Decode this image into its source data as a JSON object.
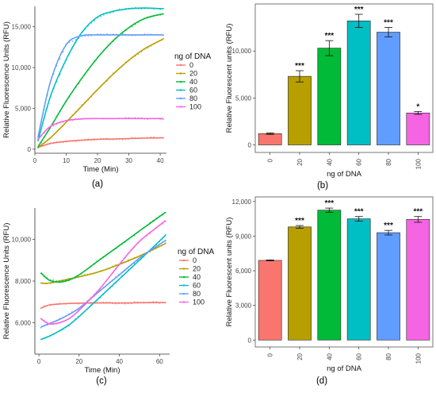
{
  "palette": [
    "#F8766D",
    "#B79F00",
    "#00BA38",
    "#00BFC4",
    "#619CFF",
    "#F564E3"
  ],
  "chart_data": [
    {
      "id": "a",
      "type": "line",
      "panel_label": "(a)",
      "xlabel": "Time (Min)",
      "ylabel": "Relative Fluorescence Units (RFU)",
      "xlim": [
        0,
        42
      ],
      "ylim": [
        -500,
        17500
      ],
      "xticks": [
        0,
        10,
        20,
        30,
        40
      ],
      "xtick_labels": [
        "0",
        "10",
        "20",
        "30",
        "40"
      ],
      "yticks": [
        0,
        5000,
        10000,
        15000
      ],
      "ytick_labels": [
        "0",
        "5,000",
        "10,000",
        "15,000"
      ],
      "legend_title": "ng of DNA",
      "legend_position": "right",
      "x": [
        1,
        5,
        10,
        15,
        20,
        25,
        30,
        35,
        41
      ],
      "series": [
        {
          "name": "0",
          "values": [
            200,
            700,
            950,
            1100,
            1200,
            1250,
            1300,
            1350,
            1400
          ]
        },
        {
          "name": "20",
          "values": [
            200,
            1400,
            3300,
            5300,
            7300,
            9200,
            10900,
            12300,
            13500
          ]
        },
        {
          "name": "40",
          "values": [
            300,
            2700,
            5900,
            8700,
            11200,
            13300,
            14900,
            16000,
            16600
          ]
        },
        {
          "name": "60",
          "values": [
            1000,
            6500,
            11000,
            14300,
            16200,
            16900,
            17200,
            17300,
            17200
          ]
        },
        {
          "name": "80",
          "values": [
            1500,
            8300,
            12800,
            13900,
            14000,
            14000,
            14000,
            14000,
            14000
          ]
        },
        {
          "name": "100",
          "values": [
            1200,
            2800,
            3500,
            3700,
            3750,
            3750,
            3750,
            3750,
            3750
          ]
        }
      ]
    },
    {
      "id": "b",
      "type": "bar",
      "panel_label": "(b)",
      "xlabel": "ng of DNA",
      "ylabel": "Relative Fluorescent units (RFU)",
      "ylim": [
        -800,
        15000
      ],
      "yticks": [
        0,
        5000,
        10000
      ],
      "ytick_labels": [
        "0",
        "5,000",
        "10,000"
      ],
      "categories": [
        "0",
        "20",
        "40",
        "60",
        "80",
        "100"
      ],
      "values": [
        1200,
        7300,
        10300,
        13200,
        12000,
        3400
      ],
      "errors": [
        80,
        600,
        800,
        700,
        500,
        150
      ],
      "annotations": [
        "",
        "***",
        "***",
        "***",
        "***",
        "*"
      ]
    },
    {
      "id": "c",
      "type": "line",
      "panel_label": "(c)",
      "xlabel": "Time (Min)",
      "ylabel": "Relative Fluorescence Units (RFU)",
      "xlim": [
        -2,
        65
      ],
      "ylim": [
        4500,
        11500
      ],
      "xticks": [
        0,
        20,
        40,
        60
      ],
      "xtick_labels": [
        "0",
        "20",
        "40",
        "60"
      ],
      "yticks": [
        6000,
        8000,
        10000
      ],
      "ytick_labels": [
        "6,000",
        "8,000",
        "10,000"
      ],
      "legend_title": "ng of DNA",
      "legend_position": "right",
      "x": [
        1,
        5,
        10,
        15,
        20,
        30,
        40,
        50,
        63
      ],
      "series": [
        {
          "name": "0",
          "values": [
            6700,
            6850,
            6900,
            6930,
            6940,
            6950,
            6950,
            6960,
            6970
          ]
        },
        {
          "name": "20",
          "values": [
            7900,
            7900,
            8000,
            8100,
            8200,
            8450,
            8800,
            9200,
            9800
          ]
        },
        {
          "name": "40",
          "values": [
            8400,
            8050,
            7950,
            8050,
            8300,
            9000,
            9700,
            10400,
            11300
          ]
        },
        {
          "name": "60",
          "values": [
            5200,
            5350,
            5600,
            5900,
            6300,
            7200,
            8100,
            9000,
            10200
          ]
        },
        {
          "name": "80",
          "values": [
            5800,
            5950,
            6150,
            6400,
            6700,
            7500,
            8300,
            9100,
            9950
          ]
        },
        {
          "name": "100",
          "values": [
            6200,
            5950,
            6000,
            6200,
            6600,
            7600,
            8800,
            9900,
            10900
          ]
        }
      ]
    },
    {
      "id": "d",
      "type": "bar",
      "panel_label": "(d)",
      "xlabel": "ng of DNA",
      "ylabel": "Relative Fluorescent units (RFU)",
      "ylim": [
        -600,
        12400
      ],
      "yticks": [
        0,
        3000,
        6000,
        9000,
        12000
      ],
      "ytick_labels": [
        "0",
        "3,000",
        "6,000",
        "9,000",
        "12,000"
      ],
      "categories": [
        "0",
        "20",
        "40",
        "60",
        "80",
        "100"
      ],
      "values": [
        6900,
        9800,
        11250,
        10500,
        9300,
        10450
      ],
      "errors": [
        40,
        120,
        180,
        200,
        200,
        250
      ],
      "annotations": [
        "",
        "***",
        "***",
        "***",
        "***",
        "***"
      ]
    }
  ]
}
